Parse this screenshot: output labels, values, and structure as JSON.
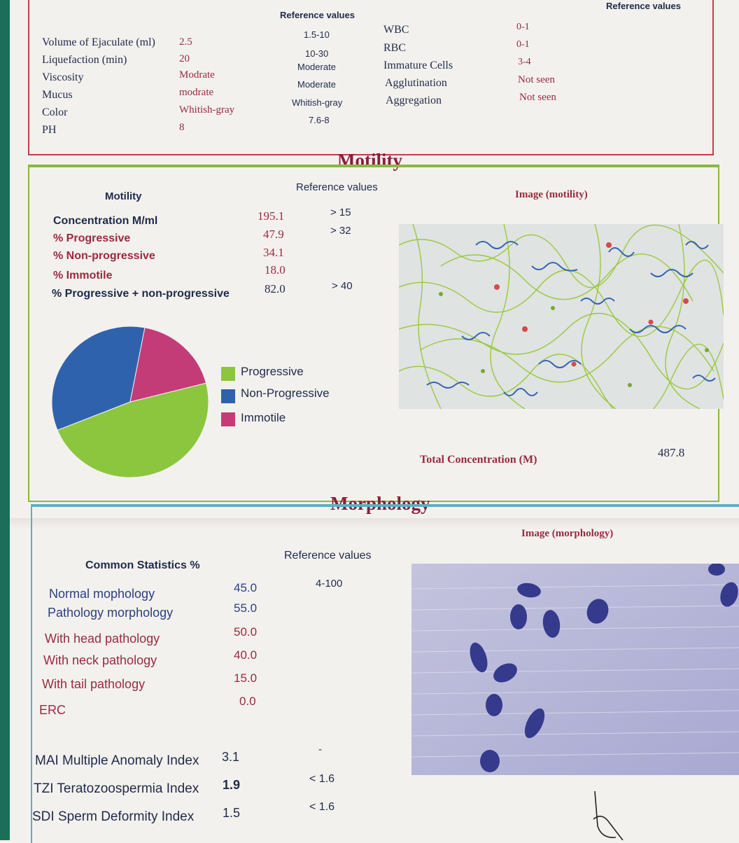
{
  "top_section": {
    "reference_header_center": "Reference values",
    "reference_header_right": "Reference values",
    "rows": [
      {
        "label": "Volume of Ejaculate (ml)",
        "value": "2.5",
        "ref": "1.5-10"
      },
      {
        "label": "Liquefaction (min)",
        "value": "20",
        "ref": "10-30"
      },
      {
        "label": "Viscosity",
        "value": "Modrate",
        "ref": "Moderate"
      },
      {
        "label": "Mucus",
        "value": "modrate",
        "ref": "Moderate"
      },
      {
        "label": "Color",
        "value": "Whitish-gray",
        "ref": "Whitish-gray"
      },
      {
        "label": "PH",
        "value": "8",
        "ref": "7.6-8"
      }
    ],
    "right_rows": [
      {
        "label": "WBC",
        "value": "0-1"
      },
      {
        "label": "RBC",
        "value": "0-1"
      },
      {
        "label": "Immature Cells",
        "value": "3-4"
      },
      {
        "label": "Agglutination",
        "value": "Not seen"
      },
      {
        "label": "Aggregation",
        "value": "Not seen"
      }
    ]
  },
  "motility": {
    "section_title": "Motility",
    "table_header": "Motility",
    "reference_header": "Reference values",
    "image_label": "Image (motility)",
    "rows": [
      {
        "label": "Concentration M/ml",
        "value": "195.1",
        "ref": "> 15"
      },
      {
        "label": "% Progressive",
        "value": "47.9",
        "ref": "> 32"
      },
      {
        "label": "% Non-progressive",
        "value": "34.1",
        "ref": ""
      },
      {
        "label": "% Immotile",
        "value": "18.0",
        "ref": ""
      },
      {
        "label": "% Progressive + non-progressive",
        "value": "82.0",
        "ref": "> 40"
      }
    ],
    "legend": [
      {
        "label": "Progressive",
        "color": "#8cc63f"
      },
      {
        "label": "Non-Progressive",
        "color": "#2f62ad"
      },
      {
        "label": "Immotile",
        "color": "#c33c78"
      }
    ],
    "total_concentration_label": "Total Concentration (M)",
    "total_concentration_value": "487.8"
  },
  "chart_data": {
    "type": "pie",
    "categories": [
      "Progressive",
      "Non-Progressive",
      "Immotile"
    ],
    "values": [
      47.9,
      34.1,
      18.0
    ],
    "colors": [
      "#8cc63f",
      "#2f62ad",
      "#c33c78"
    ],
    "legend_position": "right"
  },
  "morphology": {
    "section_title": "Morphology",
    "stats_header": "Common Statistics %",
    "reference_header": "Reference values",
    "image_label": "Image (morphology)",
    "rows": [
      {
        "label": "Normal mophology",
        "value": "45.0",
        "ref": "4-100"
      },
      {
        "label": "Pathology morphology",
        "value": "55.0",
        "ref": ""
      },
      {
        "label": "With head pathology",
        "value": "50.0",
        "ref": ""
      },
      {
        "label": "With neck pathology",
        "value": "40.0",
        "ref": ""
      },
      {
        "label": "With tail pathology",
        "value": "15.0",
        "ref": ""
      },
      {
        "label": "ERC",
        "value": "0.0",
        "ref": ""
      }
    ],
    "indices": [
      {
        "label": "MAI Multiple Anomaly Index",
        "value": "3.1",
        "ref": "-"
      },
      {
        "label": "TZI Teratozoospermia Index",
        "value": "1.9",
        "ref": "< 1.6"
      },
      {
        "label": "SDI Sperm Deformity Index",
        "value": "1.5",
        "ref": "< 1.6"
      }
    ]
  }
}
